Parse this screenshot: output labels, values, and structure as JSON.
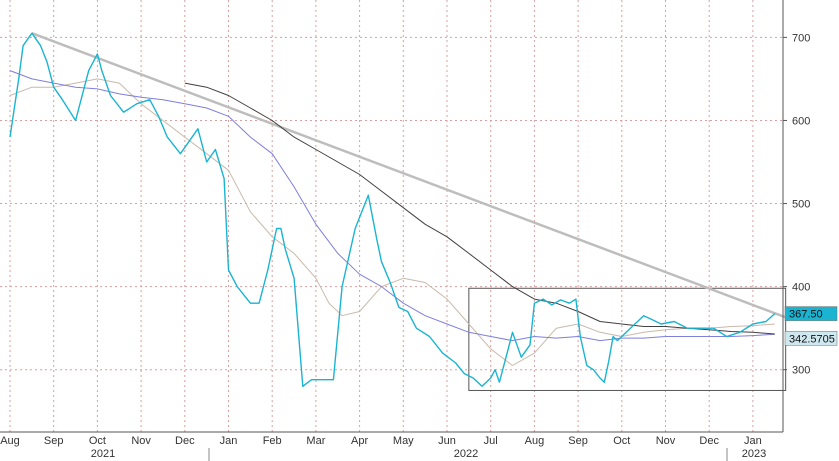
{
  "chart_data": {
    "type": "line",
    "title": "",
    "xlabel": "",
    "ylabel": "",
    "ylim": [
      225,
      745
    ],
    "y_ticks": [
      300,
      400,
      500,
      600,
      700
    ],
    "y_tick_labels": [
      "300",
      "400",
      "500",
      "600",
      "700"
    ],
    "x_tick_labels": [
      "Aug",
      "Sep",
      "Oct",
      "Nov",
      "Dec",
      "Jan",
      "Feb",
      "Mar",
      "Apr",
      "May",
      "Jun",
      "Jul",
      "Aug",
      "Sep",
      "Oct",
      "Nov",
      "Dec",
      "Jan"
    ],
    "year_labels": [
      "2021",
      "2022",
      "2023"
    ],
    "grid": true,
    "legend": "none",
    "last_value_badges": [
      "367.50",
      "342.5705"
    ],
    "colors": {
      "price": "#1ab4d2",
      "ma_blue": "#7f7fdc",
      "ma_tan": "#c8b9a9",
      "ma_black": "#404040",
      "trendline": "#bdbdbd",
      "box": "#555555",
      "badge_primary": "#1ab4d2",
      "badge_secondary": "#cfe8ef",
      "grid": "#d8a0a0"
    },
    "series": [
      {
        "key": "price",
        "x": [
          0,
          0.2,
          0.3,
          0.5,
          0.7,
          0.85,
          1.0,
          1.2,
          1.5,
          1.8,
          2.0,
          2.1,
          2.3,
          2.6,
          2.9,
          3.2,
          3.4,
          3.6,
          3.9,
          4.1,
          4.3,
          4.5,
          4.7,
          4.9,
          5.0,
          5.2,
          5.5,
          5.7,
          5.9,
          6.1,
          6.2,
          6.3,
          6.5,
          6.7,
          6.9,
          7.2,
          7.4,
          7.6,
          7.9,
          8.2,
          8.4,
          8.5,
          8.7,
          8.9,
          9.1,
          9.3,
          9.6,
          9.9,
          10.2,
          10.4,
          10.6,
          10.8,
          11.0,
          11.1,
          11.2,
          11.4,
          11.5,
          11.7,
          11.9,
          12.0,
          12.2,
          12.4,
          12.6,
          12.8,
          12.95,
          13.05,
          13.2,
          13.35,
          13.5,
          13.6,
          13.7,
          13.8,
          13.9,
          14.1,
          14.3,
          14.5,
          14.7,
          14.9,
          15.2,
          15.5,
          15.8,
          16.1,
          16.4,
          16.7,
          17.0,
          17.3,
          17.5
        ],
        "y": [
          580,
          650,
          690,
          705,
          690,
          670,
          640,
          625,
          600,
          660,
          680,
          660,
          630,
          610,
          620,
          625,
          605,
          580,
          560,
          575,
          590,
          550,
          565,
          530,
          420,
          400,
          380,
          380,
          420,
          470,
          470,
          445,
          410,
          280,
          288,
          288,
          288,
          400,
          470,
          510,
          455,
          430,
          405,
          375,
          370,
          350,
          340,
          320,
          308,
          295,
          290,
          280,
          290,
          300,
          285,
          325,
          345,
          315,
          330,
          380,
          385,
          378,
          384,
          380,
          385,
          340,
          305,
          300,
          290,
          285,
          310,
          340,
          335,
          345,
          355,
          365,
          360,
          355,
          358,
          350,
          350,
          350,
          340,
          345,
          355,
          358,
          367.5
        ]
      },
      {
        "key": "ma_blue",
        "x": [
          0,
          0.5,
          1.0,
          1.5,
          2.0,
          2.5,
          3.0,
          3.5,
          4.0,
          4.5,
          5.0,
          5.5,
          6.0,
          6.5,
          7.0,
          7.5,
          8.0,
          8.5,
          9.0,
          9.5,
          10.0,
          10.5,
          11.0,
          11.5,
          12.0,
          12.5,
          13.0,
          13.5,
          14.0,
          14.5,
          15.0,
          15.5,
          16.0,
          16.5,
          17.0,
          17.5
        ],
        "y": [
          660,
          650,
          645,
          640,
          638,
          632,
          628,
          625,
          620,
          615,
          605,
          580,
          560,
          520,
          475,
          440,
          415,
          400,
          380,
          365,
          355,
          345,
          340,
          335,
          340,
          338,
          340,
          335,
          338,
          338,
          340,
          340,
          340,
          340,
          341,
          342.5705
        ]
      },
      {
        "key": "ma_tan",
        "x": [
          0,
          0.5,
          1.0,
          1.5,
          2.0,
          2.5,
          3.0,
          3.5,
          4.0,
          4.5,
          5.0,
          5.5,
          6.0,
          6.5,
          7.0,
          7.3,
          7.6,
          8.0,
          8.5,
          9.0,
          9.5,
          10.0,
          10.5,
          11.0,
          11.5,
          12.0,
          12.5,
          13.0,
          13.5,
          14.0,
          14.5,
          15.0,
          15.5,
          16.0,
          16.5,
          17.0,
          17.5
        ],
        "y": [
          630,
          640,
          640,
          645,
          650,
          645,
          620,
          600,
          580,
          560,
          540,
          490,
          460,
          440,
          410,
          380,
          365,
          370,
          400,
          410,
          405,
          385,
          355,
          325,
          305,
          320,
          350,
          355,
          345,
          340,
          345,
          348,
          350,
          350,
          352,
          353,
          355
        ]
      },
      {
        "key": "ma_black",
        "x": [
          4.0,
          4.5,
          5.0,
          5.5,
          6.0,
          6.5,
          7.0,
          7.5,
          8.0,
          8.5,
          9.0,
          9.5,
          10.0,
          10.5,
          11.0,
          11.5,
          12.0,
          12.5,
          13.0,
          13.5,
          14.0,
          14.5,
          15.0,
          15.5,
          16.0,
          16.5,
          17.0,
          17.5
        ],
        "y": [
          645,
          640,
          630,
          615,
          600,
          580,
          565,
          550,
          535,
          515,
          495,
          475,
          460,
          440,
          420,
          400,
          385,
          380,
          370,
          358,
          355,
          352,
          352,
          350,
          348,
          346,
          345,
          343
        ]
      }
    ],
    "trendline": {
      "x": [
        0.5,
        17.75
      ],
      "y": [
        705,
        363
      ]
    },
    "range_box": {
      "x": [
        10.5,
        17.75
      ],
      "y": [
        275,
        398
      ]
    }
  }
}
